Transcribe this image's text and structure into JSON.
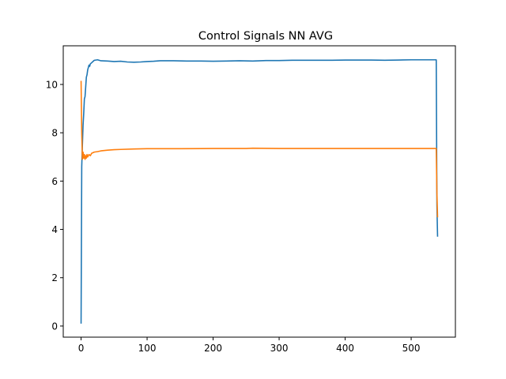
{
  "chart_data": {
    "type": "line",
    "title": "Control Signals NN AVG",
    "xlabel": "",
    "ylabel": "",
    "xlim": [
      -27,
      567
    ],
    "ylim": [
      -0.46,
      11.6
    ],
    "x_ticks": [
      0,
      100,
      200,
      300,
      400,
      500
    ],
    "y_ticks": [
      0,
      2,
      4,
      6,
      8,
      10
    ],
    "grid": false,
    "legend": "none",
    "series": [
      {
        "color": "#1f77b4",
        "points": [
          [
            0,
            0.1
          ],
          [
            1,
            6.6
          ],
          [
            2,
            7.5
          ],
          [
            3,
            8.3
          ],
          [
            4,
            8.8
          ],
          [
            5,
            9.4
          ],
          [
            6,
            9.5
          ],
          [
            7,
            9.9
          ],
          [
            8,
            10.3
          ],
          [
            9,
            10.4
          ],
          [
            10,
            10.6
          ],
          [
            11,
            10.7
          ],
          [
            12,
            10.8
          ],
          [
            13,
            10.75
          ],
          [
            14,
            10.85
          ],
          [
            16,
            10.9
          ],
          [
            18,
            10.95
          ],
          [
            20,
            11.0
          ],
          [
            25,
            11.02
          ],
          [
            30,
            10.98
          ],
          [
            40,
            10.97
          ],
          [
            50,
            10.95
          ],
          [
            60,
            10.96
          ],
          [
            70,
            10.93
          ],
          [
            80,
            10.92
          ],
          [
            90,
            10.93
          ],
          [
            100,
            10.95
          ],
          [
            110,
            10.96
          ],
          [
            120,
            10.98
          ],
          [
            140,
            10.98
          ],
          [
            160,
            10.97
          ],
          [
            180,
            10.97
          ],
          [
            200,
            10.96
          ],
          [
            220,
            10.97
          ],
          [
            240,
            10.98
          ],
          [
            260,
            10.97
          ],
          [
            280,
            10.99
          ],
          [
            300,
            10.99
          ],
          [
            320,
            11.0
          ],
          [
            340,
            11.0
          ],
          [
            360,
            11.0
          ],
          [
            380,
            11.0
          ],
          [
            400,
            11.01
          ],
          [
            420,
            11.01
          ],
          [
            440,
            11.01
          ],
          [
            460,
            11.0
          ],
          [
            480,
            11.01
          ],
          [
            500,
            11.02
          ],
          [
            520,
            11.02
          ],
          [
            538,
            11.02
          ],
          [
            539,
            5.0
          ],
          [
            540,
            3.7
          ]
        ]
      },
      {
        "color": "#ff7f0e",
        "points": [
          [
            0,
            10.15
          ],
          [
            1,
            8.0
          ],
          [
            2,
            6.9
          ],
          [
            3,
            7.2
          ],
          [
            4,
            6.95
          ],
          [
            5,
            7.1
          ],
          [
            6,
            6.9
          ],
          [
            7,
            7.05
          ],
          [
            8,
            6.95
          ],
          [
            9,
            7.1
          ],
          [
            10,
            7.0
          ],
          [
            12,
            7.1
          ],
          [
            14,
            7.05
          ],
          [
            16,
            7.15
          ],
          [
            20,
            7.2
          ],
          [
            25,
            7.22
          ],
          [
            30,
            7.25
          ],
          [
            40,
            7.28
          ],
          [
            50,
            7.3
          ],
          [
            60,
            7.31
          ],
          [
            80,
            7.33
          ],
          [
            100,
            7.34
          ],
          [
            120,
            7.34
          ],
          [
            150,
            7.34
          ],
          [
            200,
            7.35
          ],
          [
            250,
            7.35
          ],
          [
            260,
            7.36
          ],
          [
            300,
            7.35
          ],
          [
            350,
            7.35
          ],
          [
            400,
            7.35
          ],
          [
            450,
            7.35
          ],
          [
            500,
            7.35
          ],
          [
            538,
            7.35
          ],
          [
            539,
            5.5
          ],
          [
            540,
            4.5
          ]
        ]
      }
    ]
  }
}
